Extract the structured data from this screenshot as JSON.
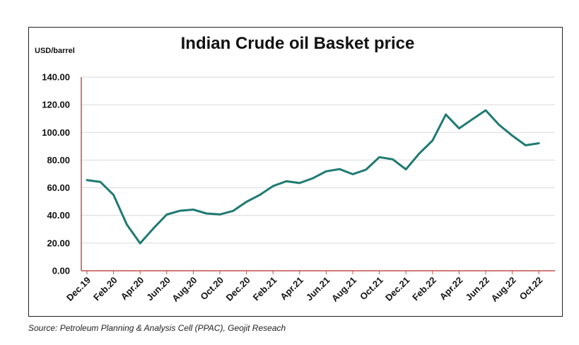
{
  "chart_data": {
    "type": "line",
    "title": "Indian Crude oil Basket price",
    "ylabel": "USD/barrel",
    "xlabel": "",
    "ylim": [
      0,
      140
    ],
    "yticks": [
      "0.00",
      "20.00",
      "40.00",
      "60.00",
      "80.00",
      "100.00",
      "120.00",
      "140.00"
    ],
    "grid": true,
    "x_tick_labels": [
      "Dec.19",
      "Feb.20",
      "Apr.20",
      "Jun.20",
      "Aug.20",
      "Oct.20",
      "Dec.20",
      "Feb.21",
      "Apr.21",
      "Jun.21",
      "Aug.21",
      "Oct.21",
      "Dec.21",
      "Feb.22",
      "Apr.22",
      "Jun.22",
      "Aug.22",
      "Oct.22"
    ],
    "categories": [
      "Dec.19",
      "Jan.20",
      "Feb.20",
      "Mar.20",
      "Apr.20",
      "May.20",
      "Jun.20",
      "Jul.20",
      "Aug.20",
      "Sep.20",
      "Oct.20",
      "Nov.20",
      "Dec.20",
      "Jan.21",
      "Feb.21",
      "Mar.21",
      "Apr.21",
      "May.21",
      "Jun.21",
      "Jul.21",
      "Aug.21",
      "Sep.21",
      "Oct.21",
      "Nov.21",
      "Dec.21",
      "Jan.22",
      "Feb.22",
      "Mar.22",
      "Apr.22",
      "May.22",
      "Jun.22",
      "Jul.22",
      "Aug.22",
      "Sep.22",
      "Oct.22"
    ],
    "series": [
      {
        "values": [
          65.5,
          64.3,
          54.8,
          33.4,
          19.9,
          30.6,
          40.6,
          43.4,
          44.2,
          41.4,
          40.7,
          43.3,
          49.8,
          54.8,
          61.2,
          64.7,
          63.4,
          66.9,
          71.9,
          73.5,
          69.8,
          73.1,
          82.1,
          80.6,
          73.3,
          84.7,
          94.1,
          112.9,
          102.9,
          109.5,
          116.0,
          105.5,
          97.7,
          90.7,
          92.2
        ],
        "color": "#1f7a72"
      }
    ],
    "colors": {
      "line": "#1f7a72",
      "grid": "#d9d9d9",
      "y_axis": "#c0504d",
      "x_axis": "#c0504d"
    }
  },
  "source_note": "Source: Petroleum Planning & Analysis Cell (PPAC), Geojit Reseach"
}
